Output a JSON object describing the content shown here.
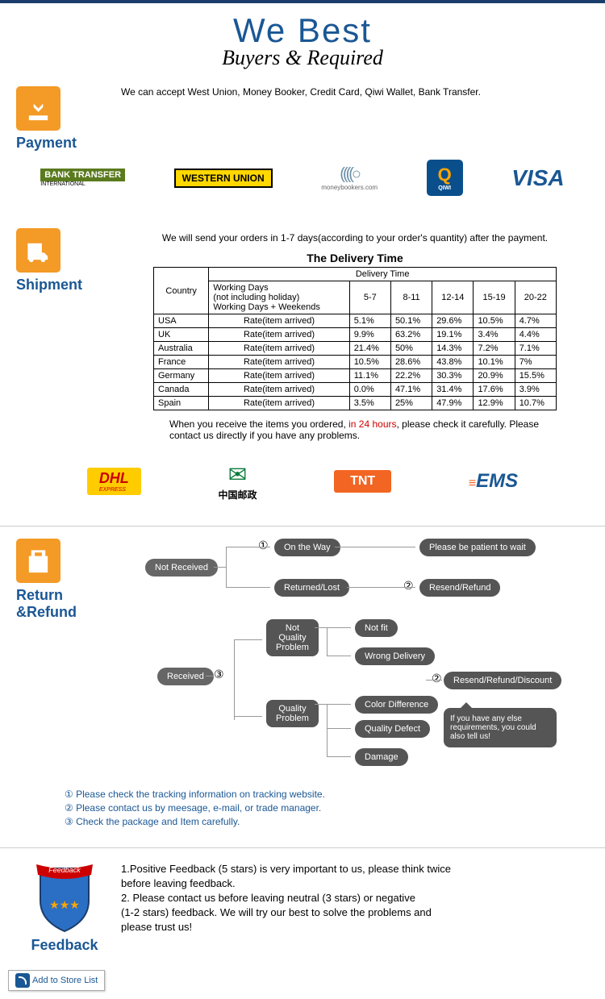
{
  "header": {
    "title": "We   Best",
    "subtitle": "Buyers & Required"
  },
  "payment": {
    "label": "Payment",
    "text": "We can accept West Union, Money Booker, Credit Card, Qiwi Wallet, Bank Transfer.",
    "logos": {
      "bank_transfer": "BANK TRANSFER",
      "bt_sub": "INTERNATIONAL",
      "western_union": "WESTERN UNION",
      "moneybookers": "((((○",
      "mb_text": "moneybookers.com",
      "qiwi": "Q",
      "qiwi_text": "QIWI",
      "visa": "VISA"
    }
  },
  "shipment": {
    "label": "Shipment",
    "intro": "We will send your orders in 1-7 days(according to your order's quantity) after the payment.",
    "table_title": "The Delivery Time",
    "headers": {
      "country": "Country",
      "delivery": "Delivery Time",
      "working": "Working Days\n(not including holiday)\nWorking Days + Weekends"
    },
    "time_cols": [
      "5-7",
      "8-11",
      "12-14",
      "15-19",
      "20-22"
    ],
    "rows": [
      {
        "c": "USA",
        "r": "Rate(item arrived)",
        "v": [
          "5.1%",
          "50.1%",
          "29.6%",
          "10.5%",
          "4.7%"
        ]
      },
      {
        "c": "UK",
        "r": "Rate(item arrived)",
        "v": [
          "9.9%",
          "63.2%",
          "19.1%",
          "3.4%",
          "4.4%"
        ]
      },
      {
        "c": "Australia",
        "r": "Rate(item arrived)",
        "v": [
          "21.4%",
          "50%",
          "14.3%",
          "7.2%",
          "7.1%"
        ]
      },
      {
        "c": "France",
        "r": "Rate(item arrived)",
        "v": [
          "10.5%",
          "28.6%",
          "43.8%",
          "10.1%",
          "7%"
        ]
      },
      {
        "c": "Germany",
        "r": "Rate(item arrived)",
        "v": [
          "11.1%",
          "22.2%",
          "30.3%",
          "20.9%",
          "15.5%"
        ]
      },
      {
        "c": "Canada",
        "r": "Rate(item arrived)",
        "v": [
          "0.0%",
          "47.1%",
          "31.4%",
          "17.6%",
          "3.9%"
        ]
      },
      {
        "c": "Spain",
        "r": "Rate(item arrived)",
        "v": [
          "3.5%",
          "25%",
          "47.9%",
          "12.9%",
          "10.7%"
        ]
      }
    ],
    "note_pre": "When you receive the items you ordered, ",
    "note_red": "in 24 hours",
    "note_post": ", please check it carefully. Please contact us directly if you have any problems.",
    "carriers": {
      "dhl": "DHL",
      "dhl_sub": "EXPRESS",
      "cp_text": "中国邮政",
      "tnt": "TNT",
      "ems": "EMS"
    }
  },
  "refund": {
    "label": "Return &Refund",
    "boxes": {
      "not_received": "Not Received",
      "received": "Received",
      "on_way": "On the Way",
      "returned": "Returned/Lost",
      "not_quality": "Not\nQuality\nProblem",
      "quality": "Quality\nProblem",
      "not_fit": "Not fit",
      "wrong_delivery": "Wrong Delivery",
      "color_diff": "Color Difference",
      "defect": "Quality Defect",
      "damage": "Damage",
      "patient": "Please be patient to wait",
      "resend1": "Resend/Refund",
      "resend2": "Resend/Refund/Discount",
      "speech": "If you have any else requirements, you could also tell us!"
    },
    "nums": {
      "n1": "①",
      "n2": "②",
      "n3": "③"
    },
    "notes": [
      "① Please check the tracking information on tracking website.",
      "② Please contact us by meesage, e-mail, or trade manager.",
      "③ Check the package and Item carefully."
    ]
  },
  "feedback": {
    "label": "Feedback",
    "lines": [
      "1.Positive Feedback (5 stars) is very important to us, please think twice",
      " before leaving feedback.",
      "2. Please contact us before leaving neutral (3 stars) or negative",
      "(1-2 stars) feedback. We will try our best to solve the problems and",
      " please trust us!"
    ]
  },
  "store_list": "Add to Store List"
}
